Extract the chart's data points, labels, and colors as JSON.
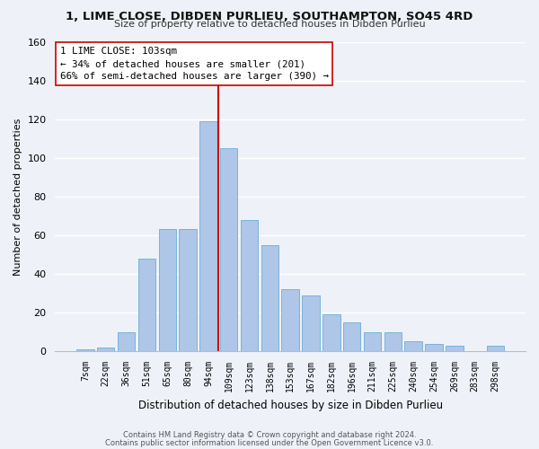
{
  "title": "1, LIME CLOSE, DIBDEN PURLIEU, SOUTHAMPTON, SO45 4RD",
  "subtitle": "Size of property relative to detached houses in Dibden Purlieu",
  "xlabel": "Distribution of detached houses by size in Dibden Purlieu",
  "ylabel": "Number of detached properties",
  "bar_labels": [
    "7sqm",
    "22sqm",
    "36sqm",
    "51sqm",
    "65sqm",
    "80sqm",
    "94sqm",
    "109sqm",
    "123sqm",
    "138sqm",
    "153sqm",
    "167sqm",
    "182sqm",
    "196sqm",
    "211sqm",
    "225sqm",
    "240sqm",
    "254sqm",
    "269sqm",
    "283sqm",
    "298sqm"
  ],
  "bar_values": [
    1,
    2,
    10,
    48,
    63,
    63,
    119,
    105,
    68,
    55,
    32,
    29,
    19,
    15,
    10,
    10,
    5,
    4,
    3,
    0,
    3
  ],
  "bar_color": "#aec6e8",
  "bar_edge_color": "#6badd6",
  "vline_x": 6.5,
  "vline_color": "#cc0000",
  "ylim": [
    0,
    160
  ],
  "yticks": [
    0,
    20,
    40,
    60,
    80,
    100,
    120,
    140,
    160
  ],
  "annotation_title": "1 LIME CLOSE: 103sqm",
  "annotation_line1": "← 34% of detached houses are smaller (201)",
  "annotation_line2": "66% of semi-detached houses are larger (390) →",
  "annotation_box_color": "#ffffff",
  "annotation_box_edge": "#cc0000",
  "footer_line1": "Contains HM Land Registry data © Crown copyright and database right 2024.",
  "footer_line2": "Contains public sector information licensed under the Open Government Licence v3.0.",
  "bg_color": "#eef2f8",
  "grid_color": "#ffffff"
}
